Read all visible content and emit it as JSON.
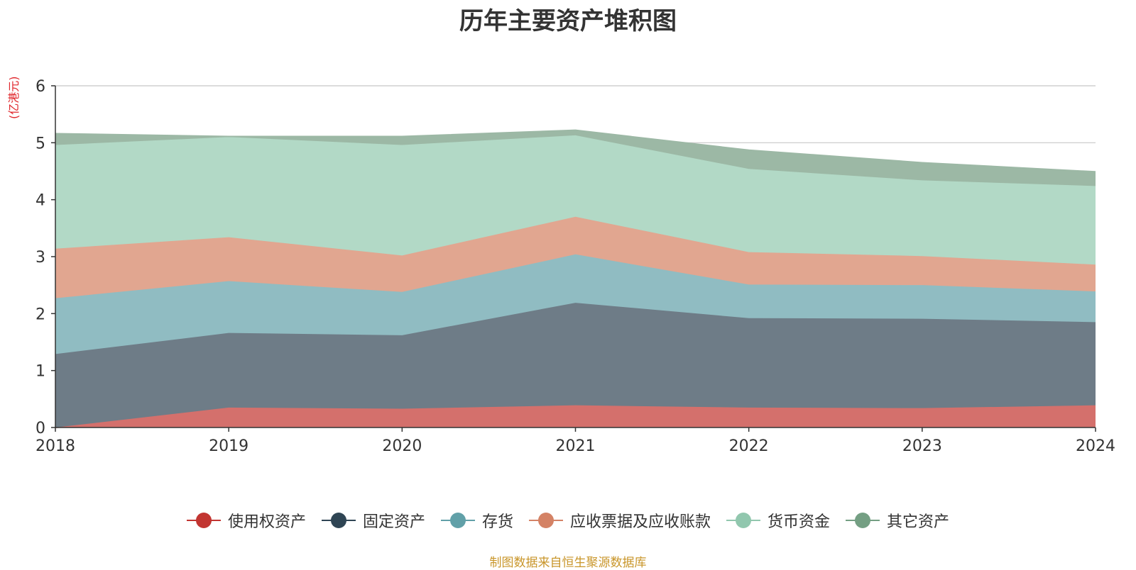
{
  "chart_data": {
    "type": "area",
    "stacked": true,
    "title": "历年主要资产堆积图",
    "unit_label": "(亿港元)",
    "x": [
      "2018",
      "2019",
      "2020",
      "2021",
      "2022",
      "2023",
      "2024"
    ],
    "ylim": [
      0,
      6
    ],
    "yticks": [
      "0",
      "1",
      "2",
      "3",
      "4",
      "5",
      "6"
    ],
    "grid": true,
    "legend_position": "bottom",
    "series": [
      {
        "name": "使用权资产",
        "color": "#c23531",
        "fill": "#d4706c",
        "values": [
          0.0,
          0.35,
          0.33,
          0.39,
          0.35,
          0.34,
          0.39
        ]
      },
      {
        "name": "固定资产",
        "color": "#2f4554",
        "fill": "#6e7c87",
        "values": [
          1.29,
          1.31,
          1.29,
          1.8,
          1.57,
          1.57,
          1.46
        ]
      },
      {
        "name": "存货",
        "color": "#61a0a8",
        "fill": "#90bcc2",
        "values": [
          0.98,
          0.91,
          0.76,
          0.85,
          0.59,
          0.59,
          0.54
        ]
      },
      {
        "name": "应收票据及应收账款",
        "color": "#d48265",
        "fill": "#e1a690",
        "values": [
          0.87,
          0.77,
          0.64,
          0.66,
          0.57,
          0.51,
          0.47
        ]
      },
      {
        "name": "货币资金",
        "color": "#91c7ae",
        "fill": "#b2d9c6",
        "values": [
          1.82,
          1.76,
          1.94,
          1.43,
          1.46,
          1.33,
          1.38
        ]
      },
      {
        "name": "其它资产",
        "color": "#749f83",
        "fill": "#9cb8a5",
        "values": [
          0.2,
          0.01,
          0.15,
          0.09,
          0.33,
          0.31,
          0.25
        ]
      }
    ]
  },
  "source_note": "制图数据来自恒生聚源数据库"
}
